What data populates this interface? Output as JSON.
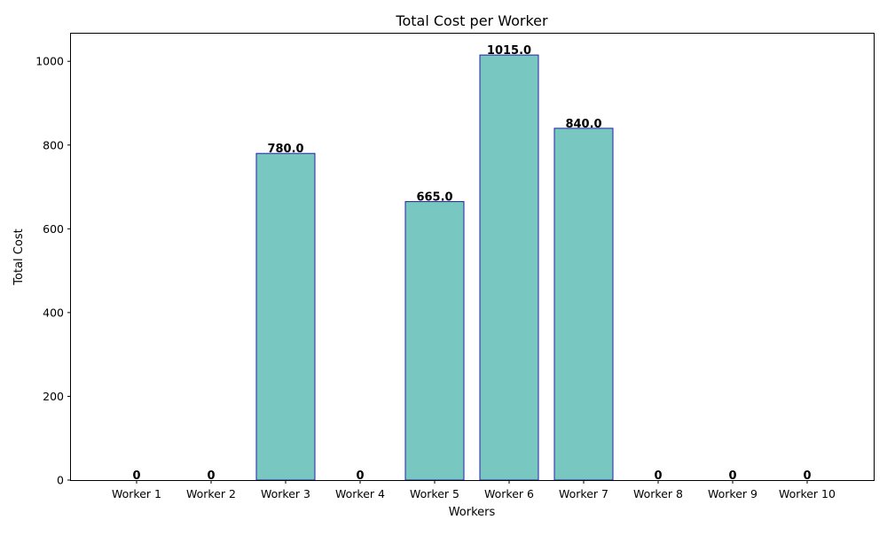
{
  "chart_data": {
    "type": "bar",
    "title": "Total Cost per Worker",
    "xlabel": "Workers",
    "ylabel": "Total Cost",
    "categories": [
      "Worker 1",
      "Worker 2",
      "Worker 3",
      "Worker 4",
      "Worker 5",
      "Worker 6",
      "Worker 7",
      "Worker 8",
      "Worker 9",
      "Worker 10"
    ],
    "values": [
      0,
      0,
      780.0,
      0,
      665.0,
      1015.0,
      840.0,
      0,
      0,
      0
    ],
    "value_labels": [
      "0",
      "0",
      "780.0",
      "0",
      "665.0",
      "1015.0",
      "840.0",
      "0",
      "0",
      "0"
    ],
    "ylim": [
      0,
      1066
    ],
    "yticks": [
      0,
      200,
      400,
      600,
      800,
      1000
    ],
    "ytick_labels": [
      "0",
      "200",
      "400",
      "600",
      "800",
      "1000"
    ],
    "grid": false,
    "legend": "none",
    "colors": {
      "bar_fill": "#78c7c0",
      "bar_edge": "#1f1fa6",
      "axis": "#000000",
      "text": "#000000"
    }
  }
}
